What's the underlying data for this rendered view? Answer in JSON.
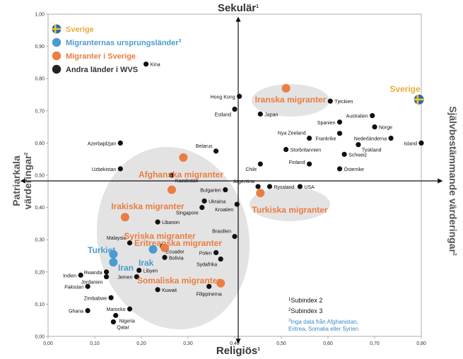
{
  "chart_data": {
    "type": "scatter",
    "title": "",
    "xlabel": "Religiös",
    "xlabel_sup": "1",
    "ylabel_top": "Sekulär",
    "ylabel_top_sup": "1",
    "left_label_line1": "Patriarkala",
    "left_label_line2": "värderingar",
    "left_label_sup": "2",
    "right_label": "Självbestämmande värderingar",
    "right_label_sup": "2",
    "xlim": [
      0,
      0.8
    ],
    "ylim": [
      0,
      1
    ],
    "x_ticks": [
      0.0,
      0.1,
      0.2,
      0.3,
      0.4,
      0.5,
      0.6,
      0.7,
      0.8
    ],
    "y_ticks": [
      0.0,
      0.1,
      0.2,
      0.3,
      0.4,
      0.5,
      0.6,
      0.7,
      0.8,
      0.9,
      1.0
    ],
    "x_tick_labels": [
      "0,00",
      "0,10",
      "0,20",
      "0,30",
      "0,40",
      "0,50",
      "0,60",
      "0,70",
      "0,80"
    ],
    "y_tick_labels": [
      "0,00",
      "0,10",
      "0,20",
      "0,30",
      "0,40",
      "0,50",
      "0,60",
      "0,70",
      "0,80",
      "0,90",
      "1,00"
    ],
    "center": [
      0.41,
      0.5
    ],
    "legend": [
      {
        "label": "Sverige",
        "marker": "flag",
        "color": "#e9ac3d"
      },
      {
        "label": "Migranternas ursprungsländer",
        "sup": "3",
        "marker": "circle",
        "color": "#4a9bd1"
      },
      {
        "label": "Migranter i Sverige",
        "marker": "circle",
        "color": "#ea7d42"
      },
      {
        "label": "Andra länder i WVS",
        "marker": "circle",
        "color": "#222222"
      }
    ],
    "series": [
      {
        "name": "Andra länder i WVS",
        "color": "#111111",
        "points": [
          {
            "label": "Kina",
            "x": 0.21,
            "y": 0.845,
            "pos": "right"
          },
          {
            "label": "Hong Kong",
            "x": 0.41,
            "y": 0.745,
            "pos": "left"
          },
          {
            "label": "Estland",
            "x": 0.4,
            "y": 0.705,
            "pos": "below-left"
          },
          {
            "label": "Japan",
            "x": 0.455,
            "y": 0.69,
            "pos": "right"
          },
          {
            "label": "Tjeckien",
            "x": 0.605,
            "y": 0.73,
            "pos": "right"
          },
          {
            "label": "Australien",
            "x": 0.695,
            "y": 0.685,
            "pos": "left"
          },
          {
            "label": "Spanien",
            "x": 0.625,
            "y": 0.665,
            "pos": "left"
          },
          {
            "label": "Norge",
            "x": 0.7,
            "y": 0.65,
            "pos": "right"
          },
          {
            "label": "Nya Zeeland",
            "x": 0.56,
            "y": 0.615,
            "pos": "above-left"
          },
          {
            "label": "Frankrike",
            "x": 0.625,
            "y": 0.63,
            "pos": "below-left"
          },
          {
            "label": "Nederländerna",
            "x": 0.735,
            "y": 0.615,
            "pos": "left"
          },
          {
            "label": "Tyskland",
            "x": 0.665,
            "y": 0.595,
            "pos": "below-right"
          },
          {
            "label": "Island",
            "x": 0.8,
            "y": 0.6,
            "pos": "left"
          },
          {
            "label": "Storbritannien",
            "x": 0.51,
            "y": 0.58,
            "pos": "right"
          },
          {
            "label": "Schweiz",
            "x": 0.635,
            "y": 0.565,
            "pos": "right"
          },
          {
            "label": "Finland",
            "x": 0.56,
            "y": 0.535,
            "pos": "left-above"
          },
          {
            "label": "Österrike",
            "x": 0.625,
            "y": 0.52,
            "pos": "right"
          },
          {
            "label": "Chile",
            "x": 0.455,
            "y": 0.535,
            "pos": "below-left"
          },
          {
            "label": "Azerbajdzjan",
            "x": 0.155,
            "y": 0.6,
            "pos": "left"
          },
          {
            "label": "Belarus",
            "x": 0.36,
            "y": 0.575,
            "pos": "above-left"
          },
          {
            "label": "Uzbekistan",
            "x": 0.155,
            "y": 0.52,
            "pos": "left"
          },
          {
            "label": "Kazakstan",
            "x": 0.265,
            "y": 0.5,
            "pos": "below-right"
          },
          {
            "label": "Argentina",
            "x": 0.45,
            "y": 0.465,
            "pos": "above-left"
          },
          {
            "label": "Ryssland",
            "x": 0.475,
            "y": 0.465,
            "pos": "right"
          },
          {
            "label": "USA",
            "x": 0.54,
            "y": 0.465,
            "pos": "right"
          },
          {
            "label": "Bulgarien",
            "x": 0.38,
            "y": 0.455,
            "pos": "left"
          },
          {
            "label": "Ukraina",
            "x": 0.335,
            "y": 0.42,
            "pos": "right"
          },
          {
            "label": "Kroatien",
            "x": 0.405,
            "y": 0.41,
            "pos": "below-left"
          },
          {
            "label": "Singapore",
            "x": 0.33,
            "y": 0.4,
            "pos": "below-left"
          },
          {
            "label": "Libanon",
            "x": 0.235,
            "y": 0.355,
            "pos": "right"
          },
          {
            "label": "Brasilien",
            "x": 0.4,
            "y": 0.31,
            "pos": "above-left"
          },
          {
            "label": "Malaysia",
            "x": 0.175,
            "y": 0.29,
            "pos": "above-left"
          },
          {
            "label": "Ecuador",
            "x": 0.245,
            "y": 0.28,
            "pos": "below-right"
          },
          {
            "label": "Polen",
            "x": 0.36,
            "y": 0.26,
            "pos": "left"
          },
          {
            "label": "Sydafrika",
            "x": 0.37,
            "y": 0.24,
            "pos": "below-left"
          },
          {
            "label": "Bolivia",
            "x": 0.25,
            "y": 0.245,
            "pos": "right"
          },
          {
            "label": "Libyen",
            "x": 0.195,
            "y": 0.205,
            "pos": "right"
          },
          {
            "label": "Rwanda",
            "x": 0.125,
            "y": 0.2,
            "pos": "left"
          },
          {
            "label": "Indien",
            "x": 0.07,
            "y": 0.19,
            "pos": "left"
          },
          {
            "label": "Jordanien",
            "x": 0.125,
            "y": 0.185,
            "pos": "below-left"
          },
          {
            "label": "Jemen",
            "x": 0.19,
            "y": 0.185,
            "pos": "left"
          },
          {
            "label": "Pakistan",
            "x": 0.085,
            "y": 0.155,
            "pos": "left"
          },
          {
            "label": "Kuwait",
            "x": 0.235,
            "y": 0.145,
            "pos": "right"
          },
          {
            "label": "Filippinerna",
            "x": 0.345,
            "y": 0.155,
            "pos": "below"
          },
          {
            "label": "Zimbabwe",
            "x": 0.135,
            "y": 0.12,
            "pos": "left"
          },
          {
            "label": "Ghana",
            "x": 0.085,
            "y": 0.08,
            "pos": "left"
          },
          {
            "label": "Marocko",
            "x": 0.175,
            "y": 0.085,
            "pos": "left"
          },
          {
            "label": "Nigeria",
            "x": 0.145,
            "y": 0.065,
            "pos": "below-right"
          },
          {
            "label": "Qatar",
            "x": 0.14,
            "y": 0.045,
            "pos": "below-right"
          }
        ]
      },
      {
        "name": "Migranter i Sverige",
        "color": "#ea7d42",
        "points": [
          {
            "label": "Iranska migranter",
            "x": 0.51,
            "y": 0.77
          },
          {
            "label": "Afghanska migranter",
            "x": 0.29,
            "y": 0.555
          },
          {
            "label": "Irakiska migranter",
            "x": 0.265,
            "y": 0.455
          },
          {
            "label": "Turkiska migranter",
            "x": 0.455,
            "y": 0.445
          },
          {
            "label": "Syriska migranter",
            "x": 0.165,
            "y": 0.37
          },
          {
            "label": "Eritreanska migranter",
            "x": 0.25,
            "y": 0.275
          },
          {
            "label": "Somaliska migranter",
            "x": 0.37,
            "y": 0.165
          }
        ]
      },
      {
        "name": "Migranternas ursprungsländer",
        "color": "#4a9bd1",
        "points": [
          {
            "label": "Turkiet",
            "x": 0.14,
            "y": 0.255
          },
          {
            "label": "Iran",
            "x": 0.14,
            "y": 0.23
          },
          {
            "label": "Irak",
            "x": 0.225,
            "y": 0.27
          }
        ]
      },
      {
        "name": "Sverige",
        "color": "#e9ac3d",
        "points": [
          {
            "label": "Sverige",
            "x": 0.795,
            "y": 0.735
          }
        ]
      }
    ],
    "notes": [
      {
        "sup": "1",
        "text": "Subindex 2"
      },
      {
        "sup": "2",
        "text": "Subindex 3"
      },
      {
        "sup": "3",
        "text": "Inga data från Afghanistan,"
      },
      {
        "sup": "",
        "text": "Eritrea, Somalia eller Syrien"
      }
    ]
  }
}
